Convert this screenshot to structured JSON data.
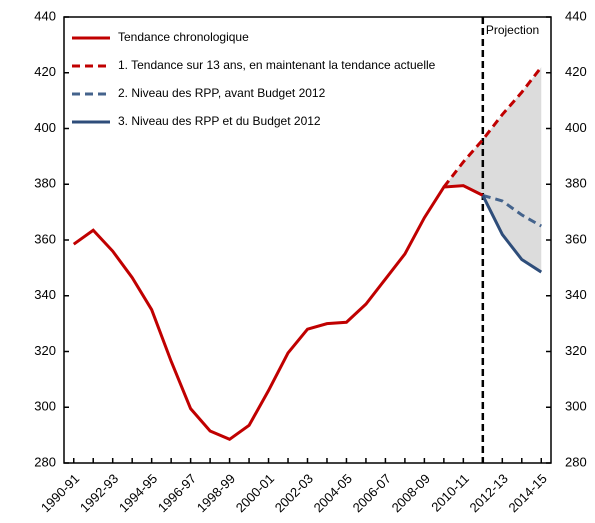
{
  "chart_data": {
    "type": "line",
    "categories": [
      "1990-91",
      null,
      "1992-93",
      null,
      "1994-95",
      null,
      "1996-97",
      null,
      "1998-99",
      null,
      "2000-01",
      null,
      "2002-03",
      null,
      "2004-05",
      null,
      "2006-07",
      null,
      "2008-09",
      null,
      "2010-11",
      null,
      "2012-13",
      null,
      "2014-15"
    ],
    "series": [
      {
        "name": "Tendance chronologique",
        "color": "#c00000",
        "dash": false,
        "values": [
          358.5,
          363.5,
          356,
          346.5,
          335,
          316.5,
          299.5,
          291.5,
          288.5,
          293.5,
          306,
          319.5,
          328,
          330,
          330.5,
          337,
          346,
          355,
          368,
          379,
          379.5,
          376,
          null,
          null,
          null
        ]
      },
      {
        "name": "1. Tendance sur 13 ans, en maintenant la tendance actuelle",
        "color": "#c00000",
        "dash": true,
        "values": [
          null,
          null,
          null,
          null,
          null,
          null,
          null,
          null,
          null,
          null,
          null,
          null,
          null,
          null,
          null,
          null,
          null,
          null,
          null,
          379,
          388,
          396,
          405,
          413,
          422
        ]
      },
      {
        "name": "2. Niveau des RPP, avant Budget 2012",
        "color": "#44638c",
        "dash": true,
        "values": [
          null,
          null,
          null,
          null,
          null,
          null,
          null,
          null,
          null,
          null,
          null,
          null,
          null,
          null,
          null,
          null,
          null,
          null,
          null,
          null,
          null,
          376,
          374,
          369,
          365
        ]
      },
      {
        "name": "3. Niveau des RPP et du Budget 2012",
        "color": "#2e4d7a",
        "dash": false,
        "values": [
          null,
          null,
          null,
          null,
          null,
          null,
          null,
          null,
          null,
          null,
          null,
          null,
          null,
          null,
          null,
          null,
          null,
          null,
          null,
          null,
          null,
          376,
          362,
          353,
          348.5
        ]
      }
    ],
    "shade_between": [
      1,
      3
    ],
    "shade_fallback": 0,
    "shade_color": "#dcdcdc",
    "projection_start": 21,
    "annotation": "Projection",
    "ylim": [
      280,
      440
    ],
    "yticks": [
      280,
      300,
      320,
      340,
      360,
      380,
      400,
      420,
      440
    ],
    "grid": false,
    "legend": "upper left"
  }
}
